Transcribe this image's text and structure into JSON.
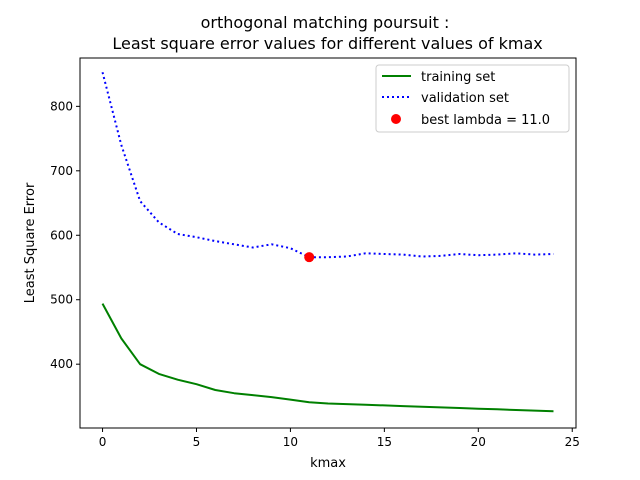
{
  "chart_data": {
    "type": "line",
    "title_line1": "orthogonal matching poursuit :",
    "title_line2": " Least square error values for different values of kmax",
    "xlabel": "kmax",
    "ylabel": "Least Square Error",
    "xlim": [
      -1.2,
      25.2
    ],
    "ylim": [
      301,
      875
    ],
    "xticks": [
      0,
      5,
      10,
      15,
      20,
      25
    ],
    "yticks": [
      400,
      500,
      600,
      700,
      800
    ],
    "x": [
      0,
      1,
      2,
      3,
      4,
      5,
      6,
      7,
      8,
      9,
      10,
      11,
      12,
      13,
      14,
      15,
      16,
      17,
      18,
      19,
      20,
      21,
      22,
      23,
      24
    ],
    "series": [
      {
        "name": "training set",
        "color": "#008000",
        "style": "solid",
        "values": [
          494,
          440,
          400,
          385,
          376,
          369,
          360,
          355,
          352,
          349,
          345,
          341,
          339,
          338,
          337,
          336,
          335,
          334,
          333,
          332,
          331,
          330,
          329,
          328,
          327
        ]
      },
      {
        "name": "validation set",
        "color": "#0000ff",
        "style": "dotted",
        "values": [
          853,
          740,
          653,
          620,
          602,
          597,
          591,
          586,
          581,
          586,
          580,
          566,
          566,
          567,
          572,
          571,
          570,
          567,
          568,
          571,
          569,
          570,
          572,
          570,
          571
        ]
      }
    ],
    "best_point": {
      "label": "best lambda = 11.0",
      "x": 11,
      "y": 566,
      "color": "#ff0000"
    },
    "legend_position": "top-right",
    "grid": false
  }
}
